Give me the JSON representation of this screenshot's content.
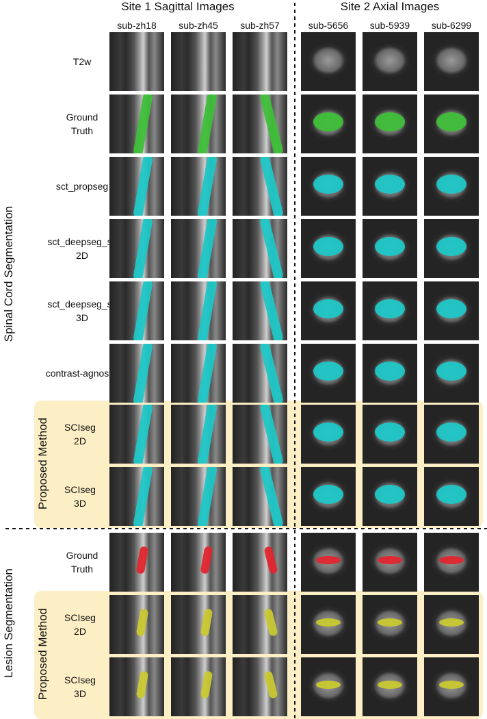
{
  "headers": {
    "site1": "Site 1 Sagittal Images",
    "site2": "Site 2 Axial Images"
  },
  "subjects": [
    "sub-zh18",
    "sub-zh45",
    "sub-zh57",
    "sub-5656",
    "sub-5939",
    "sub-6299"
  ],
  "groups": {
    "spinal_cord": "Spinal Cord Segmentation",
    "proposed_sc": "Proposed Method",
    "lesion": "Lesion Segmentation",
    "proposed_lesion": "Proposed Method"
  },
  "rows": [
    {
      "label": [
        "T2w"
      ]
    },
    {
      "label": [
        "Ground",
        "Truth"
      ]
    },
    {
      "label": [
        "sct_propseg"
      ]
    },
    {
      "label": [
        "sct_deepseg_sc",
        "2D"
      ]
    },
    {
      "label": [
        "sct_deepseg_sc",
        "3D"
      ]
    },
    {
      "label": [
        "contrast-agnostic"
      ]
    },
    {
      "label": [
        "SCIseg",
        "2D"
      ]
    },
    {
      "label": [
        "SCIseg",
        "3D"
      ]
    },
    {
      "label": [
        "Ground",
        "Truth"
      ]
    },
    {
      "label": [
        "SCIseg",
        "2D"
      ]
    },
    {
      "label": [
        "SCIseg",
        "3D"
      ]
    }
  ]
}
